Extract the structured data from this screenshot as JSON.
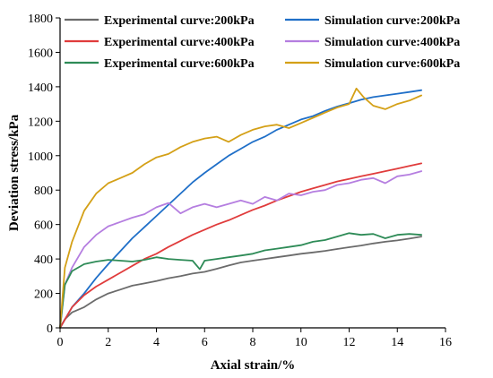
{
  "chart_data": {
    "type": "line",
    "title": "",
    "xlabel": "Axial strain/%",
    "ylabel": "Deviation stress/kPa",
    "xlim": [
      0,
      16
    ],
    "ylim": [
      0,
      1800
    ],
    "xticks": [
      0,
      2,
      4,
      6,
      8,
      10,
      12,
      14,
      16
    ],
    "yticks": [
      0,
      200,
      400,
      600,
      800,
      1000,
      1200,
      1400,
      1600,
      1800
    ],
    "grid": false,
    "legend_position": "top",
    "series": [
      {
        "name": "Experimental curve:200kPa",
        "color": "#6b6b6b",
        "x": [
          0,
          0.2,
          0.5,
          1.0,
          1.5,
          2.0,
          2.5,
          3.0,
          3.5,
          4.0,
          4.5,
          5.0,
          5.5,
          6.0,
          6.5,
          7.0,
          7.5,
          8.0,
          8.5,
          9.0,
          9.5,
          10.0,
          10.5,
          11.0,
          11.5,
          12.0,
          12.5,
          13.0,
          13.5,
          14.0,
          14.5,
          15.0
        ],
        "y": [
          0,
          50,
          90,
          120,
          165,
          200,
          222,
          245,
          258,
          272,
          288,
          300,
          315,
          325,
          343,
          362,
          380,
          390,
          400,
          410,
          420,
          430,
          438,
          447,
          458,
          468,
          478,
          490,
          500,
          508,
          518,
          530
        ]
      },
      {
        "name": "Simulation curve:200kPa",
        "color": "#1f6fc8",
        "x": [
          0,
          0.5,
          1.0,
          1.5,
          2.0,
          2.5,
          3.0,
          3.5,
          4.0,
          4.5,
          5.0,
          5.5,
          6.0,
          6.5,
          7.0,
          7.5,
          8.0,
          8.5,
          9.0,
          9.5,
          10.0,
          10.5,
          11.0,
          11.5,
          12.0,
          12.5,
          13.0,
          13.5,
          14.0,
          14.5,
          15.0
        ],
        "y": [
          0,
          120,
          200,
          290,
          370,
          445,
          520,
          585,
          650,
          715,
          780,
          845,
          900,
          950,
          1000,
          1040,
          1080,
          1110,
          1150,
          1180,
          1210,
          1230,
          1260,
          1285,
          1305,
          1325,
          1340,
          1350,
          1360,
          1370,
          1380
        ]
      },
      {
        "name": "Experimental curve:400kPa",
        "color": "#e03c3c",
        "x": [
          0,
          0.5,
          1.0,
          1.5,
          2.0,
          2.5,
          3.0,
          3.5,
          4.0,
          4.5,
          5.0,
          5.5,
          6.0,
          6.5,
          7.0,
          7.5,
          8.0,
          8.5,
          9.0,
          9.5,
          10.0,
          10.5,
          11.0,
          11.5,
          12.0,
          12.5,
          13.0,
          13.5,
          14.0,
          14.5,
          15.0
        ],
        "y": [
          0,
          120,
          190,
          240,
          280,
          320,
          360,
          400,
          430,
          470,
          505,
          540,
          570,
          600,
          625,
          655,
          685,
          710,
          740,
          765,
          790,
          810,
          830,
          850,
          865,
          880,
          895,
          910,
          925,
          940,
          955
        ]
      },
      {
        "name": "Simulation curve:400kPa",
        "color": "#b57ee0",
        "x": [
          0,
          0.2,
          0.5,
          1.0,
          1.5,
          2.0,
          2.5,
          3.0,
          3.5,
          4.0,
          4.5,
          5.0,
          5.5,
          6.0,
          6.5,
          7.0,
          7.5,
          8.0,
          8.5,
          9.0,
          9.5,
          10.0,
          10.5,
          11.0,
          11.5,
          12.0,
          12.5,
          13.0,
          13.5,
          14.0,
          14.5,
          15.0
        ],
        "y": [
          0,
          250,
          350,
          470,
          540,
          590,
          615,
          640,
          660,
          700,
          725,
          665,
          700,
          720,
          700,
          720,
          740,
          720,
          760,
          740,
          780,
          770,
          790,
          800,
          830,
          840,
          860,
          870,
          840,
          880,
          890,
          910
        ]
      },
      {
        "name": "Experimental curve:600kPa",
        "color": "#2e8b57",
        "x": [
          0,
          0.2,
          0.5,
          1.0,
          1.5,
          2.0,
          2.5,
          3.0,
          3.5,
          4.0,
          4.5,
          5.0,
          5.5,
          5.8,
          6.0,
          6.5,
          7.0,
          7.5,
          8.0,
          8.5,
          9.0,
          9.5,
          10.0,
          10.5,
          11.0,
          11.5,
          12.0,
          12.5,
          13.0,
          13.5,
          14.0,
          14.5,
          15.0
        ],
        "y": [
          0,
          250,
          330,
          370,
          385,
          395,
          390,
          385,
          395,
          410,
          400,
          395,
          390,
          340,
          390,
          400,
          410,
          420,
          430,
          450,
          460,
          470,
          480,
          500,
          510,
          530,
          550,
          540,
          545,
          520,
          540,
          545,
          540
        ]
      },
      {
        "name": "Simulation curve:600kPa",
        "color": "#d4a017",
        "x": [
          0,
          0.2,
          0.5,
          1.0,
          1.5,
          2.0,
          2.5,
          3.0,
          3.5,
          4.0,
          4.5,
          5.0,
          5.5,
          6.0,
          6.5,
          7.0,
          7.5,
          8.0,
          8.5,
          9.0,
          9.5,
          10.0,
          10.5,
          11.0,
          11.5,
          12.0,
          12.3,
          12.6,
          13.0,
          13.5,
          14.0,
          14.5,
          15.0
        ],
        "y": [
          0,
          350,
          500,
          680,
          780,
          840,
          870,
          900,
          950,
          990,
          1010,
          1050,
          1080,
          1100,
          1110,
          1080,
          1120,
          1150,
          1170,
          1180,
          1160,
          1190,
          1220,
          1250,
          1280,
          1300,
          1390,
          1340,
          1290,
          1270,
          1300,
          1320,
          1350
        ]
      }
    ]
  }
}
